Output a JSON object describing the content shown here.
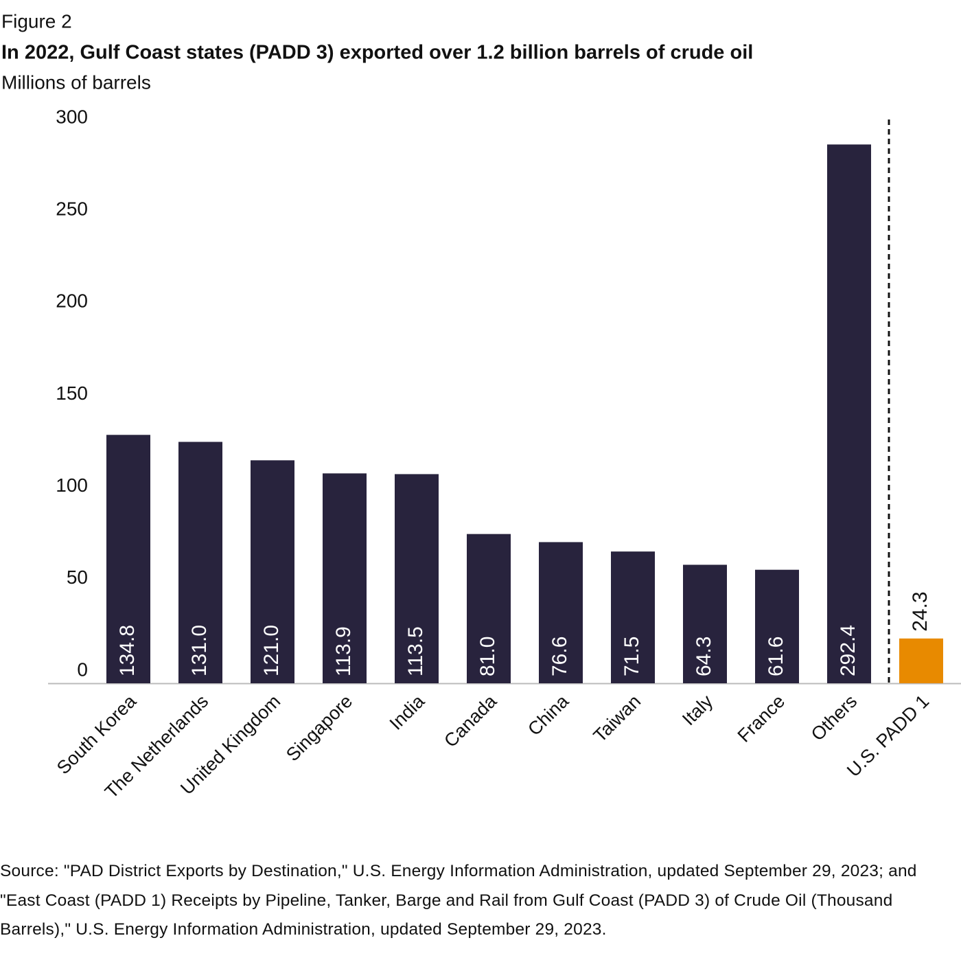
{
  "chart_data": {
    "type": "bar",
    "figure_label": "Figure 2",
    "title": "In 2022, Gulf Coast states (PADD 3) exported over 1.2 billion barrels of crude oil",
    "subtitle": "Millions of barrels",
    "categories": [
      "South Korea",
      "The Netherlands",
      "United Kingdom",
      "Singapore",
      "India",
      "Canada",
      "China",
      "Taiwan",
      "Italy",
      "France",
      "Others",
      "U.S. PADD 1"
    ],
    "values": [
      134.8,
      131.0,
      121.0,
      113.9,
      113.5,
      81.0,
      76.6,
      71.5,
      64.3,
      61.6,
      292.4,
      24.3
    ],
    "value_labels": [
      "134.8",
      "131.0",
      "121.0",
      "113.9",
      "113.5",
      "81.0",
      "76.6",
      "71.5",
      "64.3",
      "61.6",
      "292.4",
      "24.3"
    ],
    "colors": [
      "#28233d",
      "#28233d",
      "#28233d",
      "#28233d",
      "#28233d",
      "#28233d",
      "#28233d",
      "#28233d",
      "#28233d",
      "#28233d",
      "#28233d",
      "#e88a00"
    ],
    "ylim": [
      0,
      300
    ],
    "yticks": [
      0,
      50,
      100,
      150,
      200,
      250,
      300
    ],
    "grid": false,
    "source": "Source: \"PAD District Exports by Destination,\" U.S. Energy Information Administration, updated September 29, 2023; and \"East Coast (PADD 1) Receipts by Pipeline, Tanker, Barge and Rail from Gulf Coast (PADD 3) of Crude Oil (Thousand Barrels),\" U.S. Energy Information Administration, updated September 29, 2023."
  }
}
